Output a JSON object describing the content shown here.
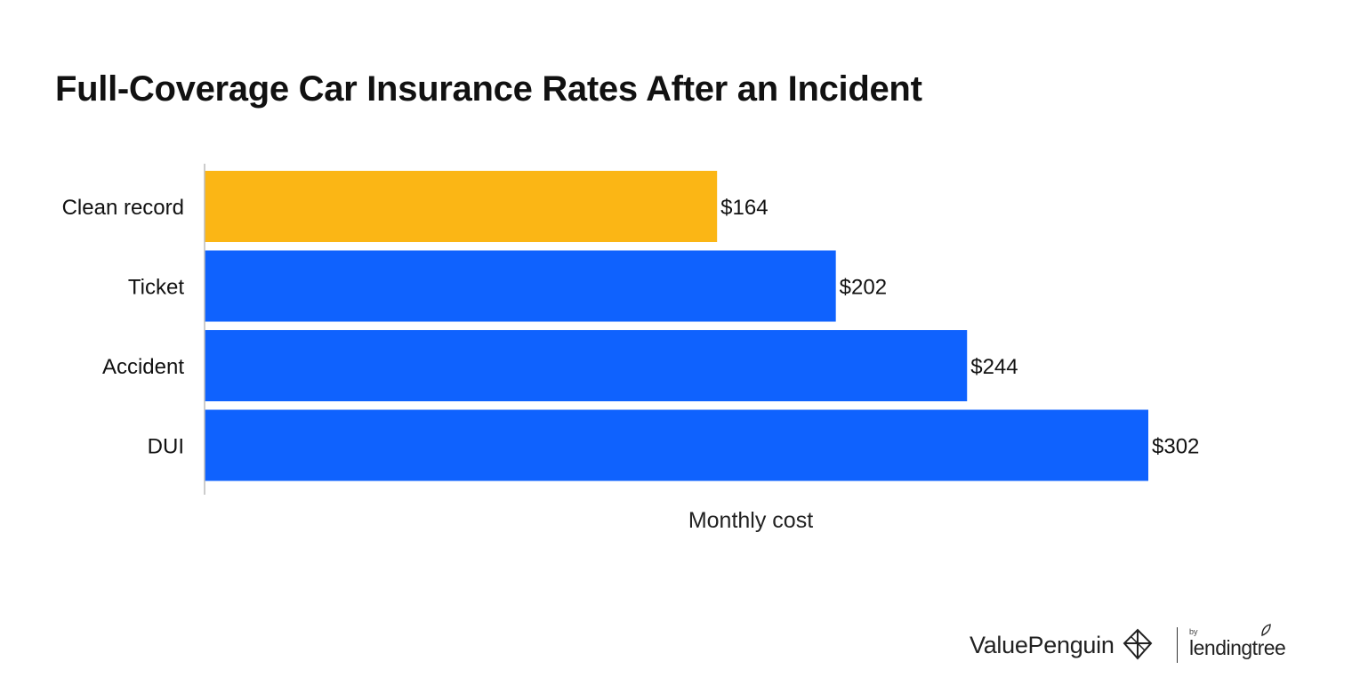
{
  "chart_data": {
    "type": "bar",
    "orientation": "horizontal",
    "title": "Full-Coverage Car Insurance Rates After an Incident",
    "xlabel": "Monthly cost",
    "ylabel": "",
    "categories": [
      "Clean record",
      "Ticket",
      "Accident",
      "DUI"
    ],
    "values": [
      164,
      202,
      244,
      302
    ],
    "data_labels": [
      "$164",
      "$202",
      "$244",
      "$302"
    ],
    "xlim": [
      0,
      302
    ],
    "grid": false,
    "legend": "none",
    "colors": {
      "highlight": "#FBB615",
      "default": "#0F62FE",
      "axis": "#BBBBBB"
    },
    "highlight_categories": [
      "Clean record"
    ]
  },
  "branding": {
    "valuepenguin": "ValuePenguin",
    "lendingtree_by": "by",
    "lendingtree": "lendingtree",
    "penguin_icon": "penguin-logo-icon",
    "leaf_icon": "leaf-icon"
  }
}
